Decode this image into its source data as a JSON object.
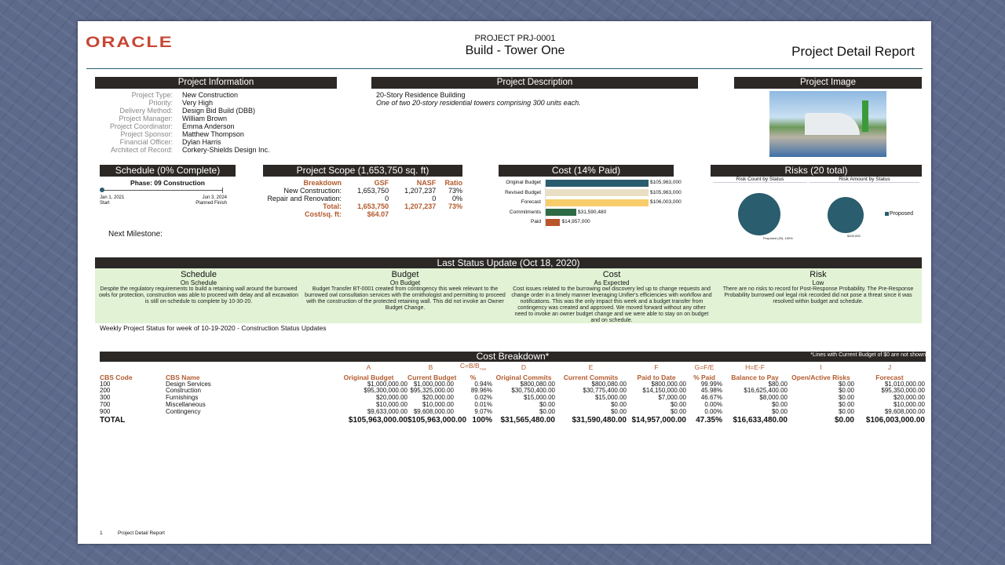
{
  "header": {
    "logo": "ORACLE",
    "project_id": "PROJECT PRJ-0001",
    "project_name": "Build - Tower One",
    "report_title": "Project Detail Report"
  },
  "project_info": {
    "title": "Project Information",
    "rows": [
      {
        "label": "Project Type:",
        "value": "New Construction"
      },
      {
        "label": "Priority:",
        "value": "Very High"
      },
      {
        "label": "Delivery Method:",
        "value": "Design Bid Build (DBB)"
      },
      {
        "label": "Project Manager:",
        "value": "William Brown"
      },
      {
        "label": "Project Coordinator:",
        "value": "Emma Anderson"
      },
      {
        "label": "Project Sponsor:",
        "value": "Matthew Thompson"
      },
      {
        "label": "Financial Officer:",
        "value": "Dylan Harris"
      },
      {
        "label": "Architect of Record:",
        "value": "Corkery-Shields Design Inc."
      }
    ]
  },
  "project_description": {
    "title": "Project Description",
    "line1": "20-Story Residence Building",
    "line2": "One of two 20-story residential towers comprising 300 units each."
  },
  "project_image": {
    "title": "Project Image"
  },
  "schedule": {
    "title": "Schedule (0% Complete)",
    "phase": "Phase: 09 Construction",
    "percent_complete": 0,
    "start_date": "Jan 1, 2021",
    "start_label": "Start",
    "finish_date": "Jun 3, 2024",
    "finish_label": "Planned Finish",
    "next_milestone": "Next Milestone:"
  },
  "scope": {
    "title": "Project Scope (1,653,750 sq. ft)",
    "headers": [
      "Breakdown",
      "GSF",
      "NASF",
      "Ratio"
    ],
    "rows": [
      [
        "New Construction:",
        "1,653,750",
        "1,207,237",
        "73%"
      ],
      [
        "Repair and Renovation:",
        "0",
        "0",
        "0%"
      ]
    ],
    "total": [
      "Total:",
      "1,653,750",
      "1,207,237",
      "73%"
    ],
    "cost_per_sqft": [
      "Cost/sq. ft:",
      "$64.07"
    ]
  },
  "cost": {
    "title": "Cost (14% Paid)",
    "bars": [
      {
        "label": "Original Budget",
        "value": 105963000,
        "text": "$105,963,000",
        "color": "#2a5d6e"
      },
      {
        "label": "Revised Budget",
        "value": 105963000,
        "text": "$105,963,000",
        "color": "#e8dfc5"
      },
      {
        "label": "Forecast",
        "value": 106003000,
        "text": "$106,003,000",
        "color": "#f7cc6a"
      },
      {
        "label": "Commitments",
        "value": 31590480,
        "text": "$31,590,480",
        "color": "#2e6b45"
      },
      {
        "label": "Paid",
        "value": 14957000,
        "text": "$14,957,000",
        "color": "#b9552c"
      }
    ]
  },
  "risks": {
    "title": "Risks (20 total)",
    "count_title": "Risk Count by Status",
    "amount_title": "Risk Amount by Status",
    "count_label": "Proposed (20), 100%",
    "amount_label": "$100,000",
    "legend": "Proposed",
    "color": "#2a5d6e"
  },
  "status_update": {
    "title": "Last Status Update (Oct 18, 2020)",
    "columns": [
      {
        "title": "Schedule",
        "status": "On Schedule",
        "text": "Despite the regulatory requirements to build a retaining wall around the burrowed owls for protection, construction was able to proceed with delay and all excavation is still on-schedule to complete by 10-30-20."
      },
      {
        "title": "Budget",
        "status": "On Budget",
        "text": "Budget Transfer BT-0001 created from contingency this week relevant to the burrowed owl consultation services with the ornithologist and permitting to proceed with the construction of the protected retaining wall. This did not invoke an Owner Budget Change."
      },
      {
        "title": "Cost",
        "status": "As Expected",
        "text": "Cost issues related to the burrowing owl discovery led up to change requests and change order in a timely manner leveraging Unifier's efficiencies with workflow and notifications.  This was the only impact this week and a budget transfer from contingency was created and approved. We moved forward without any other need to invoke an owner budget change and we were able to stay on on budget and on schedule."
      },
      {
        "title": "Risk",
        "status": "Low",
        "text": "There are no risks to record for Post-Response Probability.  The Pre-Response Probability burrowed owl legal risk recorded did not pose a threat since it was resolved within budget and schedule."
      }
    ],
    "weekly": "Weekly Project Status for week of 10-19-2020 - Construction Status Updates"
  },
  "cost_breakdown": {
    "title": "Cost Breakdown*",
    "note": "*Lines with Current Budget of $0 are not shown",
    "letters": [
      "",
      "",
      "A",
      "B",
      "C=B/B",
      "D",
      "E",
      "F",
      "G=F/E",
      "H=E-F",
      "I",
      "J"
    ],
    "letter_sub": "Total",
    "headers": [
      "CBS Code",
      "CBS Name",
      "Original Budget",
      "Current Budget",
      "%",
      "Original Commits",
      "Current Commits",
      "Paid to Date",
      "% Paid",
      "Balance to Pay",
      "Open/Active Risks",
      "Forecast"
    ],
    "rows": [
      [
        "100",
        "Design Services",
        "$1,000,000.00",
        "$1,000,000.00",
        "0.94%",
        "$800,080.00",
        "$800,080.00",
        "$800,000.00",
        "99.99%",
        "$80.00",
        "$0.00",
        "$1,010,000.00"
      ],
      [
        "200",
        "Construction",
        "$95,300,000.00",
        "$95,325,000.00",
        "89.96%",
        "$30,750,400.00",
        "$30,775,400.00",
        "$14,150,000.00",
        "45.98%",
        "$16,625,400.00",
        "$0.00",
        "$95,350,000.00"
      ],
      [
        "300",
        "Furnishings",
        "$20,000.00",
        "$20,000.00",
        "0.02%",
        "$15,000.00",
        "$15,000.00",
        "$7,000.00",
        "46.67%",
        "$8,000.00",
        "$0.00",
        "$20,000.00"
      ],
      [
        "700",
        "Miscellaneous",
        "$10,000.00",
        "$10,000.00",
        "0.01%",
        "$0.00",
        "$0.00",
        "$0.00",
        "0.00%",
        "$0.00",
        "$0.00",
        "$10,000.00"
      ],
      [
        "900",
        "Contingency",
        "$9,633,000.00",
        "$9,608,000.00",
        "9.07%",
        "$0.00",
        "$0.00",
        "$0.00",
        "0.00%",
        "$0.00",
        "$0.00",
        "$9,608,000.00"
      ]
    ],
    "total": [
      "TOTAL",
      "",
      "$105,963,000.00",
      "$105,963,000.00",
      "100%",
      "$31,565,480.00",
      "$31,590,480.00",
      "$14,957,000.00",
      "47.35%",
      "$16,633,480.00",
      "$0.00",
      "$106,003,000.00"
    ]
  },
  "footer": {
    "page": "1",
    "title": "Project Detail Report"
  }
}
